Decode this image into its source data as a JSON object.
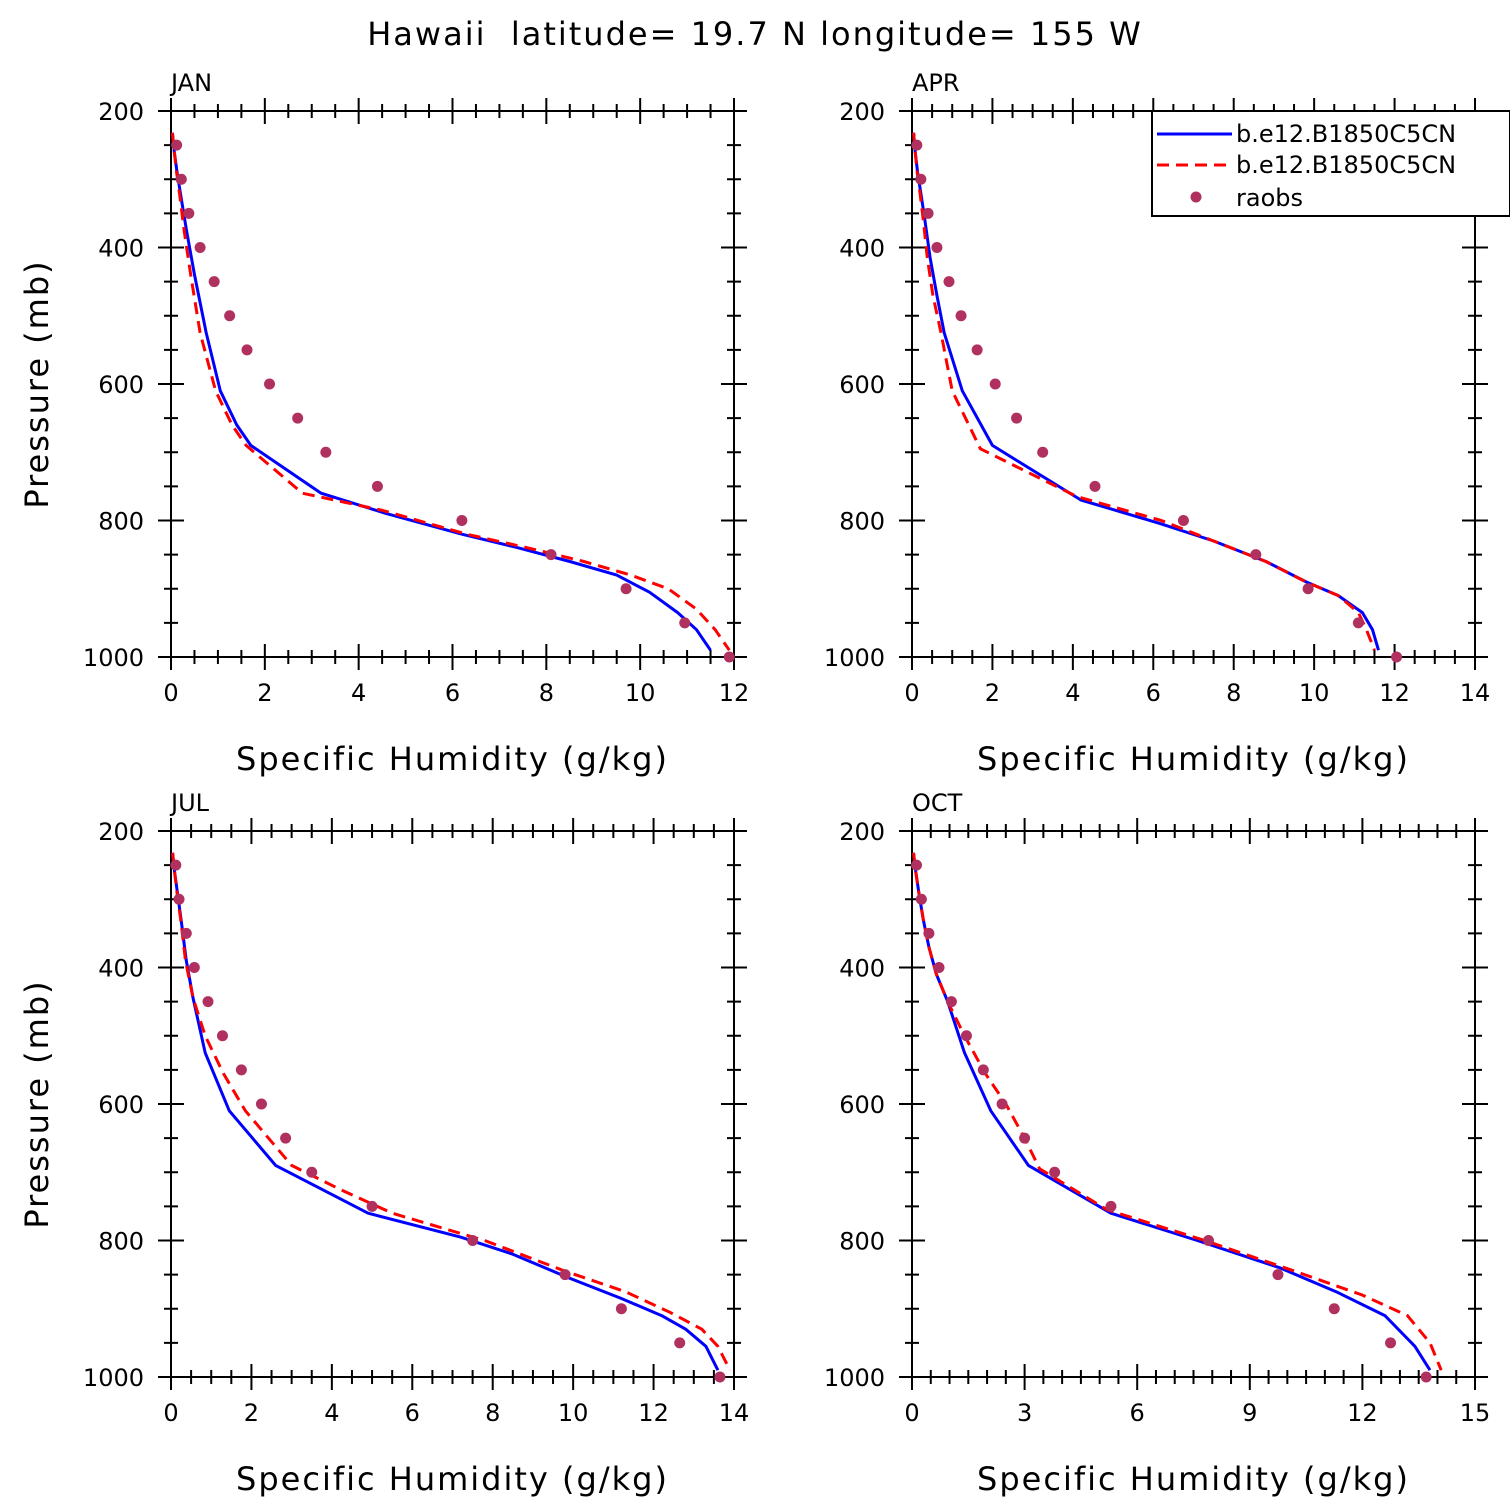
{
  "page": {
    "title": "Hawaii  latitude= 19.7 N longitude= 155 W"
  },
  "legend": {
    "placement": "top-right of APR panel",
    "entries": [
      {
        "label": "b.e12.B1850C5CN",
        "style": "solid",
        "color": "#0000ff"
      },
      {
        "label": "b.e12.B1850C5CN",
        "style": "dashed",
        "color": "#ff0000"
      },
      {
        "label": "raobs",
        "style": "marker",
        "color": "#b03060"
      }
    ]
  },
  "colors": {
    "model1": "#0000ff",
    "model2": "#ff0000",
    "raobs": "#b03060"
  },
  "chart_data": [
    {
      "type": "line",
      "title": "JAN",
      "xlabel": "Specific Humidity (g/kg)",
      "ylabel": "Pressure (mb)",
      "xlim": [
        0,
        12
      ],
      "ylim": [
        200,
        1000
      ],
      "y_inverted": true,
      "xticks": [
        0,
        2,
        4,
        6,
        8,
        10,
        12
      ],
      "yticks": [
        200,
        400,
        600,
        800,
        1000
      ],
      "series": [
        {
          "name": "b.e12.B1850C5CN",
          "style": "solid",
          "x": [
            0.03,
            0.07,
            0.13,
            0.21,
            0.33,
            0.5,
            0.75,
            1.05,
            1.4,
            1.7,
            3.2,
            4.6,
            6.2,
            7.4,
            8.5,
            9.5,
            10.2,
            10.8,
            11.2,
            11.5
          ],
          "y": [
            232,
            260,
            290,
            325,
            375,
            440,
            525,
            610,
            660,
            690,
            760,
            790,
            820,
            840,
            860,
            880,
            905,
            935,
            960,
            990
          ]
        },
        {
          "name": "b.e12.B1850C5CN",
          "style": "dashed",
          "x": [
            0.03,
            0.07,
            0.12,
            0.19,
            0.28,
            0.42,
            0.62,
            0.95,
            1.3,
            1.6,
            2.8,
            4.5,
            6.3,
            7.6,
            8.8,
            9.8,
            10.6,
            11.2,
            11.6,
            11.9
          ],
          "y": [
            232,
            260,
            290,
            325,
            375,
            440,
            525,
            610,
            660,
            690,
            760,
            785,
            820,
            840,
            860,
            880,
            900,
            930,
            960,
            990
          ]
        }
      ],
      "raobs": {
        "x": [
          0.12,
          0.22,
          0.38,
          0.62,
          0.92,
          1.25,
          1.62,
          2.1,
          2.7,
          3.3,
          4.4,
          6.2,
          8.1,
          9.7,
          10.95,
          11.9
        ],
        "y": [
          250,
          300,
          350,
          400,
          450,
          500,
          550,
          600,
          650,
          700,
          750,
          800,
          850,
          900,
          950,
          1000
        ]
      }
    },
    {
      "type": "line",
      "title": "APR",
      "xlabel": "Specific Humidity (g/kg)",
      "ylabel": "",
      "xlim": [
        0,
        14
      ],
      "ylim": [
        200,
        1000
      ],
      "y_inverted": true,
      "xticks": [
        0,
        2,
        4,
        6,
        8,
        10,
        12,
        14
      ],
      "yticks": [
        200,
        400,
        600,
        800,
        1000
      ],
      "series": [
        {
          "name": "b.e12.B1850C5CN",
          "style": "solid",
          "x": [
            0.04,
            0.08,
            0.14,
            0.22,
            0.32,
            0.45,
            0.62,
            0.8,
            1.25,
            2.0,
            4.2,
            6.2,
            7.5,
            8.8,
            9.8,
            10.6,
            11.2,
            11.45,
            11.6
          ],
          "y": [
            232,
            260,
            290,
            320,
            360,
            415,
            470,
            525,
            610,
            690,
            770,
            805,
            830,
            860,
            890,
            910,
            935,
            960,
            990
          ]
        },
        {
          "name": "b.e12.B1850C5CN",
          "style": "dashed",
          "x": [
            0.04,
            0.08,
            0.13,
            0.2,
            0.28,
            0.38,
            0.52,
            0.72,
            1.0,
            1.7,
            4.1,
            6.2,
            7.5,
            8.8,
            9.8,
            10.6,
            11.1,
            11.3,
            11.5
          ],
          "y": [
            232,
            260,
            290,
            320,
            360,
            415,
            470,
            525,
            610,
            695,
            765,
            800,
            830,
            860,
            890,
            910,
            935,
            960,
            990
          ]
        }
      ],
      "raobs": {
        "x": [
          0.12,
          0.22,
          0.4,
          0.62,
          0.92,
          1.22,
          1.62,
          2.07,
          2.6,
          3.25,
          4.55,
          6.75,
          8.55,
          9.85,
          11.1,
          12.05
        ],
        "y": [
          250,
          300,
          350,
          400,
          450,
          500,
          550,
          600,
          650,
          700,
          750,
          800,
          850,
          900,
          950,
          1000
        ]
      }
    },
    {
      "type": "line",
      "title": "JUL",
      "xlabel": "Specific Humidity (g/kg)",
      "ylabel": "Pressure (mb)",
      "xlim": [
        0,
        14
      ],
      "ylim": [
        200,
        1000
      ],
      "y_inverted": true,
      "xticks": [
        0,
        2,
        4,
        6,
        8,
        10,
        12,
        14
      ],
      "yticks": [
        200,
        400,
        600,
        800,
        1000
      ],
      "series": [
        {
          "name": "b.e12.B1850C5CN",
          "style": "solid",
          "x": [
            0.04,
            0.09,
            0.16,
            0.25,
            0.38,
            0.55,
            0.85,
            1.45,
            2.6,
            4.9,
            7.2,
            8.5,
            9.9,
            11.2,
            12.2,
            12.8,
            13.3,
            13.6
          ],
          "y": [
            232,
            260,
            290,
            330,
            390,
            445,
            525,
            610,
            690,
            760,
            795,
            820,
            855,
            885,
            910,
            930,
            955,
            990
          ]
        },
        {
          "name": "b.e12.B1850C5CN",
          "style": "dashed",
          "x": [
            0.04,
            0.09,
            0.15,
            0.24,
            0.36,
            0.55,
            0.85,
            1.3,
            1.85,
            3.0,
            4.2,
            5.5,
            7.8,
            9.8,
            11.3,
            12.4,
            13.2,
            13.6,
            13.9
          ],
          "y": [
            232,
            260,
            290,
            330,
            390,
            445,
            500,
            555,
            610,
            690,
            725,
            760,
            800,
            845,
            875,
            905,
            930,
            955,
            990
          ]
        }
      ],
      "raobs": {
        "x": [
          0.12,
          0.2,
          0.38,
          0.58,
          0.92,
          1.28,
          1.75,
          2.25,
          2.85,
          3.5,
          5.0,
          7.5,
          9.8,
          11.2,
          12.65,
          13.65
        ],
        "y": [
          250,
          300,
          350,
          400,
          450,
          500,
          550,
          600,
          650,
          700,
          750,
          800,
          850,
          900,
          950,
          1000
        ]
      }
    },
    {
      "type": "line",
      "title": "OCT",
      "xlabel": "Specific Humidity (g/kg)",
      "ylabel": "",
      "xlim": [
        0,
        15
      ],
      "ylim": [
        200,
        1000
      ],
      "y_inverted": true,
      "xticks": [
        0,
        3,
        6,
        9,
        12,
        15
      ],
      "yticks": [
        200,
        400,
        600,
        800,
        1000
      ],
      "series": [
        {
          "name": "b.e12.B1850C5CN",
          "style": "solid",
          "x": [
            0.04,
            0.1,
            0.18,
            0.3,
            0.45,
            0.65,
            0.95,
            1.4,
            2.1,
            3.1,
            5.3,
            7.6,
            9.8,
            11.3,
            12.6,
            13.4,
            13.8
          ],
          "y": [
            232,
            260,
            290,
            330,
            370,
            410,
            450,
            525,
            610,
            690,
            760,
            800,
            840,
            875,
            910,
            955,
            990
          ]
        },
        {
          "name": "b.e12.B1850C5CN",
          "style": "dashed",
          "x": [
            0.04,
            0.1,
            0.18,
            0.3,
            0.45,
            0.65,
            0.95,
            1.4,
            1.95,
            2.5,
            3.0,
            3.4,
            5.2,
            7.8,
            10.2,
            12.0,
            13.2,
            13.8,
            14.1
          ],
          "y": [
            232,
            260,
            290,
            330,
            370,
            410,
            450,
            500,
            555,
            600,
            650,
            695,
            755,
            800,
            845,
            880,
            910,
            950,
            990
          ]
        }
      ],
      "raobs": {
        "x": [
          0.12,
          0.25,
          0.45,
          0.72,
          1.05,
          1.45,
          1.9,
          2.4,
          3.0,
          3.8,
          5.3,
          7.9,
          9.75,
          11.25,
          12.75,
          13.7
        ],
        "y": [
          250,
          300,
          350,
          400,
          450,
          500,
          550,
          600,
          650,
          700,
          750,
          800,
          850,
          900,
          950,
          1000
        ]
      }
    }
  ]
}
